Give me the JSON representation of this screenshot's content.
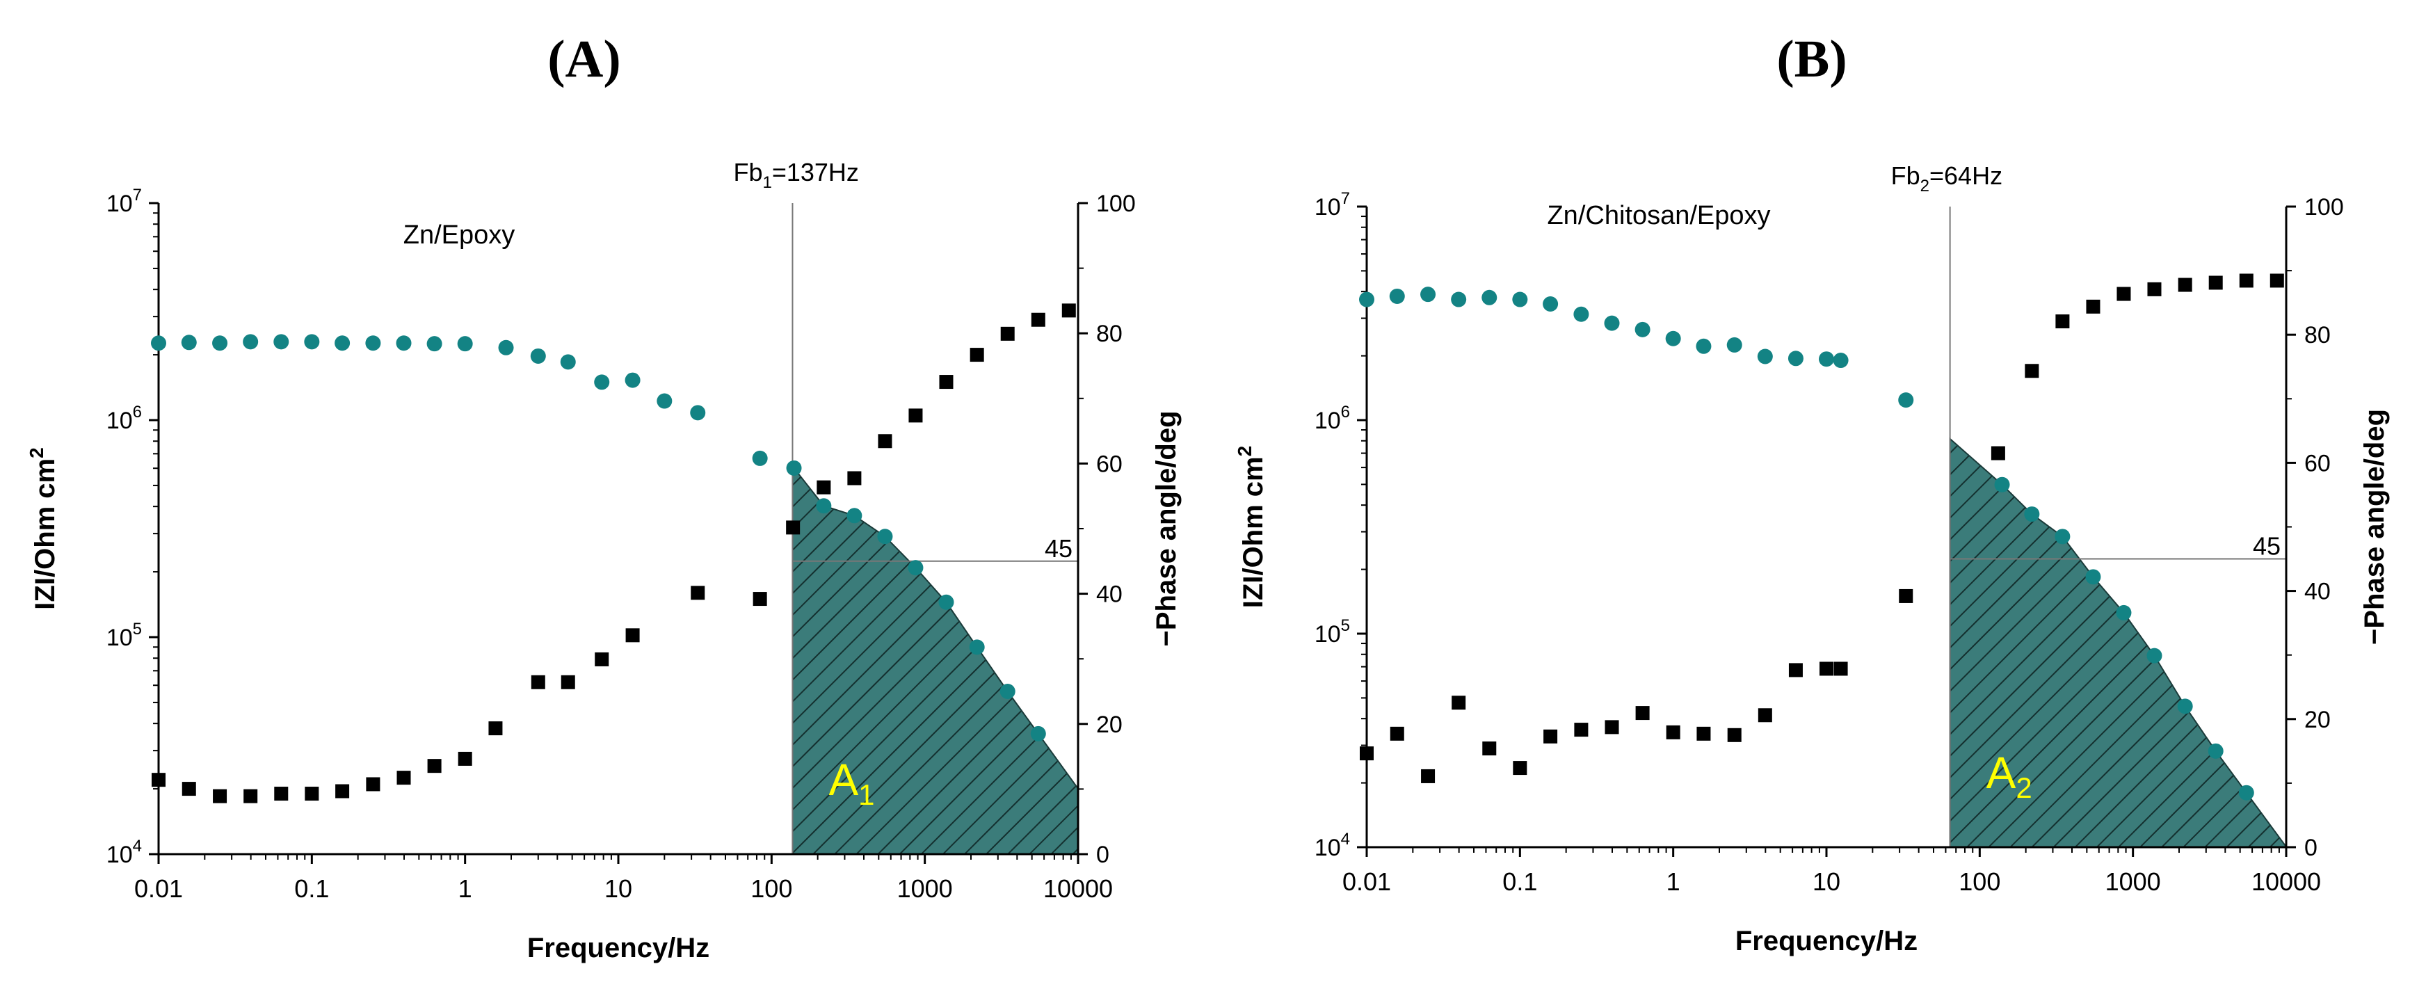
{
  "colors": {
    "impedance": "#000000",
    "phase": "#138384",
    "hatch_fill": "#3b7c7a",
    "hatch_line": "#14302f",
    "area_label": "#ffff00",
    "ref_line": "#777777"
  },
  "chart_data": [
    {
      "type": "scatter",
      "panel_title": "(A)",
      "sample_label": "Zn/Epoxy",
      "xlabel": "Frequency/Hz",
      "ylabel": "IZI/Ohm cm²",
      "ylabel_main": "IZI/Ohm cm",
      "ylabel_sup": "2",
      "y2label": "−Phase angle/deg",
      "xscale": "log",
      "xlim": [
        0.01,
        10000
      ],
      "yscale": "log",
      "ylim": [
        10000,
        10000000
      ],
      "y2lim": [
        0,
        100
      ],
      "x_ticks": [
        0.01,
        0.1,
        1,
        10,
        100,
        1000,
        10000
      ],
      "x_tick_labels": [
        "0.01",
        "0.1",
        "1",
        "10",
        "100",
        "1000",
        "10000"
      ],
      "y_tick_exps": [
        4,
        5,
        6,
        7
      ],
      "y_tick_base": "10",
      "y_tick_exp_labels": [
        "4",
        "5",
        "6",
        "7"
      ],
      "y2_ticks": [
        0,
        20,
        40,
        60,
        80,
        100
      ],
      "y2_tick_labels": [
        "0",
        "20",
        "40",
        "60",
        "80",
        "100"
      ],
      "break_frequency": 137,
      "fb_label": "Fb",
      "fb_sub": "1",
      "fb_value": "=137Hz",
      "phase_ref": 45,
      "phase_ref_label": "45",
      "area_label": "A",
      "area_sub": "1",
      "series": [
        {
          "name": "|Z|",
          "marker": "square",
          "axis": "left",
          "x": [
            0.01,
            0.0158,
            0.0251,
            0.0398,
            0.0631,
            0.1,
            0.158,
            0.251,
            0.398,
            0.631,
            1.0,
            1.58,
            3.0,
            4.7,
            7.8,
            12.4,
            33,
            84,
            138,
            219,
            347,
            550,
            871,
            1380,
            2190,
            3470,
            5500,
            8710
          ],
          "values": [
            22000,
            20000,
            18500,
            18500,
            19000,
            19000,
            19500,
            21000,
            22500,
            25500,
            27500,
            38000,
            62000,
            62000,
            79000,
            102000,
            160000,
            150000,
            320000,
            490000,
            540000,
            800000,
            1050000,
            1500000,
            2000000,
            2500000,
            2900000,
            3200000
          ]
        },
        {
          "name": "-Phase",
          "marker": "circle",
          "axis": "right",
          "x": [
            0.01,
            0.0158,
            0.0251,
            0.0398,
            0.0631,
            0.1,
            0.158,
            0.251,
            0.398,
            0.631,
            1.0,
            1.85,
            3.0,
            4.7,
            7.8,
            12.4,
            20,
            33,
            84,
            140,
            219,
            347,
            550,
            871,
            1380,
            2190,
            3470,
            5500
          ],
          "values": [
            78.5,
            78.6,
            78.5,
            78.7,
            78.7,
            78.7,
            78.5,
            78.5,
            78.5,
            78.4,
            78.4,
            77.8,
            76.5,
            75.6,
            72.5,
            72.8,
            69.6,
            67.8,
            60.8,
            59.3,
            53.5,
            52.0,
            48.8,
            44.0,
            38.7,
            31.8,
            25.0,
            18.5
          ]
        }
      ]
    },
    {
      "type": "scatter",
      "panel_title": "(B)",
      "sample_label": "Zn/Chitosan/Epoxy",
      "xlabel": "Frequency/Hz",
      "ylabel": "IZI/Ohm cm²",
      "ylabel_main": "IZI/Ohm cm",
      "ylabel_sup": "2",
      "y2label": "−Phase angle/deg",
      "xscale": "log",
      "xlim": [
        0.01,
        10000
      ],
      "yscale": "log",
      "ylim": [
        10000,
        10000000
      ],
      "y2lim": [
        0,
        100
      ],
      "x_ticks": [
        0.01,
        0.1,
        1,
        10,
        100,
        1000,
        10000
      ],
      "x_tick_labels": [
        "0.01",
        "0.1",
        "1",
        "10",
        "100",
        "1000",
        "10000"
      ],
      "y_tick_exps": [
        4,
        5,
        6,
        7
      ],
      "y_tick_base": "10",
      "y_tick_exp_labels": [
        "4",
        "5",
        "6",
        "7"
      ],
      "y2_ticks": [
        0,
        20,
        40,
        60,
        80,
        100
      ],
      "y2_tick_labels": [
        "0",
        "20",
        "40",
        "60",
        "80",
        "100"
      ],
      "break_frequency": 64,
      "fb_label": "Fb",
      "fb_sub": "2",
      "fb_value": "=64Hz",
      "phase_ref": 45,
      "phase_ref_label": "45",
      "area_label": "A",
      "area_sub": "2",
      "series": [
        {
          "name": "|Z|",
          "marker": "square",
          "axis": "left",
          "x": [
            0.01,
            0.0158,
            0.0251,
            0.0398,
            0.0631,
            0.1,
            0.158,
            0.251,
            0.398,
            0.631,
            1.0,
            1.58,
            2.51,
            3.98,
            6.31,
            10,
            12.4,
            33,
            132,
            219,
            347,
            550,
            871,
            1380,
            2190,
            3470,
            5500,
            8710
          ],
          "values": [
            27500,
            34000,
            21500,
            47500,
            29000,
            23500,
            33000,
            35500,
            36500,
            42500,
            34500,
            34000,
            33500,
            41500,
            67500,
            68500,
            68500,
            150000,
            700000,
            1700000,
            2900000,
            3400000,
            3900000,
            4100000,
            4300000,
            4400000,
            4500000,
            4500000
          ]
        },
        {
          "name": "-Phase",
          "marker": "circle",
          "axis": "right",
          "x": [
            0.01,
            0.0158,
            0.0251,
            0.0398,
            0.0631,
            0.1,
            0.158,
            0.251,
            0.398,
            0.631,
            1.0,
            1.58,
            2.51,
            3.98,
            6.31,
            10,
            12.4,
            33,
            140,
            219,
            347,
            550,
            871,
            1380,
            2190,
            3470,
            5500
          ],
          "values": [
            85.5,
            86.0,
            86.3,
            85.5,
            85.8,
            85.5,
            84.8,
            83.2,
            81.8,
            80.8,
            79.4,
            78.2,
            78.4,
            76.6,
            76.3,
            76.2,
            76.0,
            69.8,
            56.6,
            52.0,
            48.5,
            42.2,
            36.6,
            29.9,
            22.0,
            15.0,
            8.5
          ]
        }
      ]
    }
  ]
}
